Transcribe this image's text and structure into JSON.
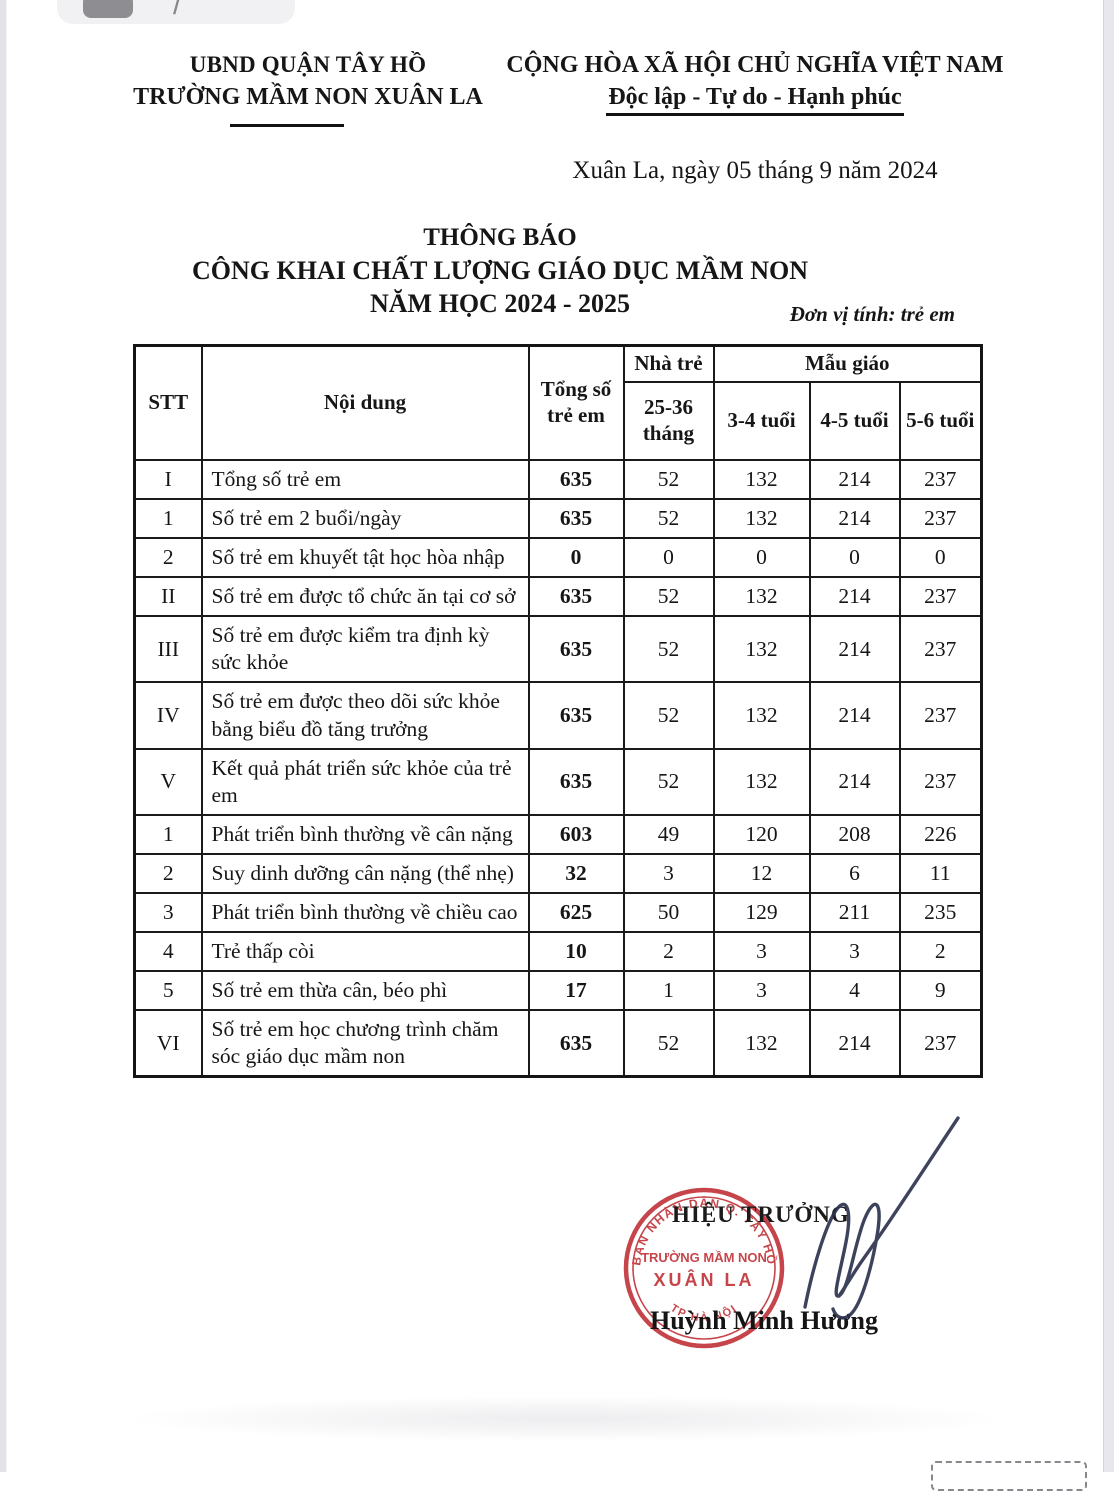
{
  "viewer": {
    "slash": "/"
  },
  "header": {
    "left_line1": "UBND QUẬN TÂY HỒ",
    "left_line2": "TRƯỜNG MẦM NON XUÂN LA",
    "right_line1": "CỘNG HÒA XÃ HỘI CHỦ NGHĨA VIỆT NAM",
    "right_line2": "Độc lập - Tự do - Hạnh phúc",
    "dateline": "Xuân La, ngày 05 tháng 9 năm 2024"
  },
  "title": {
    "line1": "THÔNG BÁO",
    "line2": "CÔNG KHAI CHẤT LƯỢNG GIÁO DỤC MẦM NON",
    "line3": "NĂM HỌC 2024 - 2025"
  },
  "unit_note": "Đơn vị tính: trẻ em",
  "table": {
    "col_stt": "STT",
    "col_noidung": "Nội dung",
    "col_tongso": "Tổng số trẻ em",
    "group_nhatre": "Nhà trẻ",
    "group_maugiao": "Mẫu giáo",
    "col_2536": "25-36 tháng",
    "col_34": "3-4 tuổi",
    "col_45": "4-5 tuổi",
    "col_56": "5-6 tuổi",
    "rows": [
      {
        "stt": "I",
        "label": "Tổng số trẻ em",
        "total": "635",
        "nhatre": "52",
        "t34": "132",
        "t45": "214",
        "t56": "237"
      },
      {
        "stt": "1",
        "label": "Số trẻ em 2 buổi/ngày",
        "total": "635",
        "nhatre": "52",
        "t34": "132",
        "t45": "214",
        "t56": "237"
      },
      {
        "stt": "2",
        "label": "Số trẻ em khuyết tật học hòa nhập",
        "total": "0",
        "nhatre": "0",
        "t34": "0",
        "t45": "0",
        "t56": "0"
      },
      {
        "stt": "II",
        "label": "Số trẻ em được tổ chức ăn tại cơ sở",
        "total": "635",
        "nhatre": "52",
        "t34": "132",
        "t45": "214",
        "t56": "237"
      },
      {
        "stt": "III",
        "label": "Số trẻ em được kiểm tra định kỳ sức khỏe",
        "total": "635",
        "nhatre": "52",
        "t34": "132",
        "t45": "214",
        "t56": "237"
      },
      {
        "stt": "IV",
        "label": "Số trẻ em được theo dõi sức khỏe bằng biểu đồ tăng trưởng",
        "total": "635",
        "nhatre": "52",
        "t34": "132",
        "t45": "214",
        "t56": "237"
      },
      {
        "stt": "V",
        "label": "Kết quả phát triển sức khỏe của trẻ em",
        "total": "635",
        "nhatre": "52",
        "t34": "132",
        "t45": "214",
        "t56": "237"
      },
      {
        "stt": "1",
        "label": "Phát triển  bình thường về cân nặng",
        "total": "603",
        "nhatre": "49",
        "t34": "120",
        "t45": "208",
        "t56": "226"
      },
      {
        "stt": "2",
        "label": "Suy dinh dưỡng cân nặng (thể nhẹ)",
        "total": "32",
        "nhatre": "3",
        "t34": "12",
        "t45": "6",
        "t56": "11"
      },
      {
        "stt": "3",
        "label": "Phát triển  bình thường về chiều cao",
        "total": "625",
        "nhatre": "50",
        "t34": "129",
        "t45": "211",
        "t56": "235"
      },
      {
        "stt": "4",
        "label": "Trẻ thấp còi",
        "total": "10",
        "nhatre": "2",
        "t34": "3",
        "t45": "3",
        "t56": "2"
      },
      {
        "stt": "5",
        "label": "Số trẻ em thừa cân, béo phì",
        "total": "17",
        "nhatre": "1",
        "t34": "3",
        "t45": "4",
        "t56": "9"
      },
      {
        "stt": "VI",
        "label": "Số trẻ em học chương trình chăm sóc giáo dục mầm non",
        "total": "635",
        "nhatre": "52",
        "t34": "132",
        "t45": "214",
        "t56": "237"
      }
    ]
  },
  "signature": {
    "title": "HIỆU TRƯỞNG",
    "name": "Huỳnh Minh Hương",
    "stamp_ring_top": "BAN NHÂN DÂN Q. TÂY HỒ",
    "stamp_ring_bottom": "TP HÀ NỘI",
    "stamp_line1": "TRƯỜNG MẦM NON",
    "stamp_line2": "XUÂN LA",
    "stamp_color": "#c2363c",
    "ink_color": "#2e3450"
  }
}
